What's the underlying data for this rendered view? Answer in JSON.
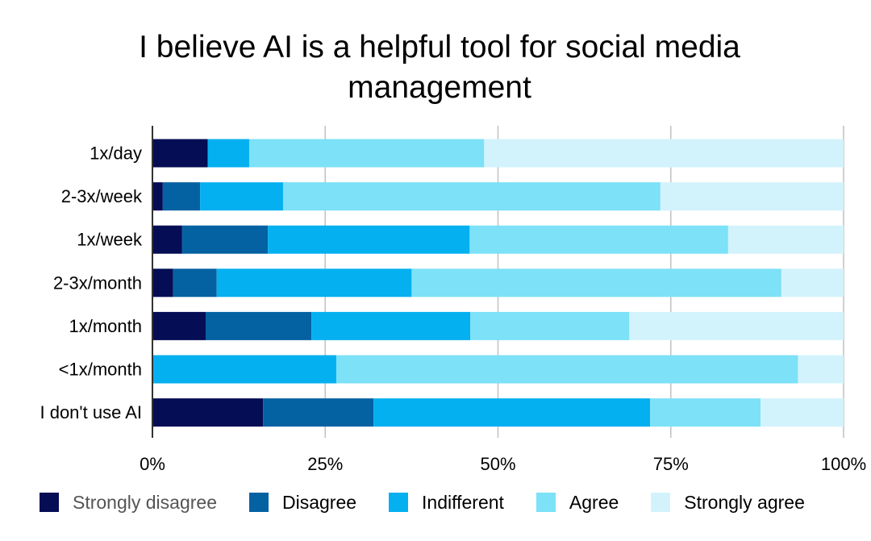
{
  "chart_data": {
    "type": "bar",
    "orientation": "horizontal",
    "stacked": "percent",
    "title": "I believe AI is a helpful tool for social media management",
    "xlabel": "",
    "ylabel": "",
    "xlim": [
      0,
      100
    ],
    "x_ticks": [
      "0%",
      "25%",
      "50%",
      "75%",
      "100%"
    ],
    "x_tick_values": [
      0,
      25,
      50,
      75,
      100
    ],
    "grid": true,
    "legend_position": "bottom",
    "categories": [
      "1x/day",
      "2-3x/week",
      "1x/week",
      "2-3x/month",
      "1x/month",
      "<1x/month",
      "I don't use AI"
    ],
    "series": [
      {
        "name": "Strongly disagree",
        "color": "#050d55",
        "values": [
          8,
          1.5,
          4.3,
          3,
          7.7,
          0,
          16
        ]
      },
      {
        "name": "Disagree",
        "color": "#0562a2",
        "values": [
          0,
          5.4,
          12.4,
          6.3,
          15.3,
          0,
          16
        ]
      },
      {
        "name": "Indifferent",
        "color": "#05b0f0",
        "values": [
          6,
          12,
          29.2,
          28.2,
          23,
          26.6,
          40
        ]
      },
      {
        "name": "Agree",
        "color": "#7de1f8",
        "values": [
          34,
          54.6,
          37.4,
          53.5,
          23,
          66.8,
          16
        ]
      },
      {
        "name": "Strongly agree",
        "color": "#d3f3fc",
        "values": [
          52,
          26.5,
          16.7,
          9,
          31,
          6.6,
          12
        ]
      }
    ]
  }
}
